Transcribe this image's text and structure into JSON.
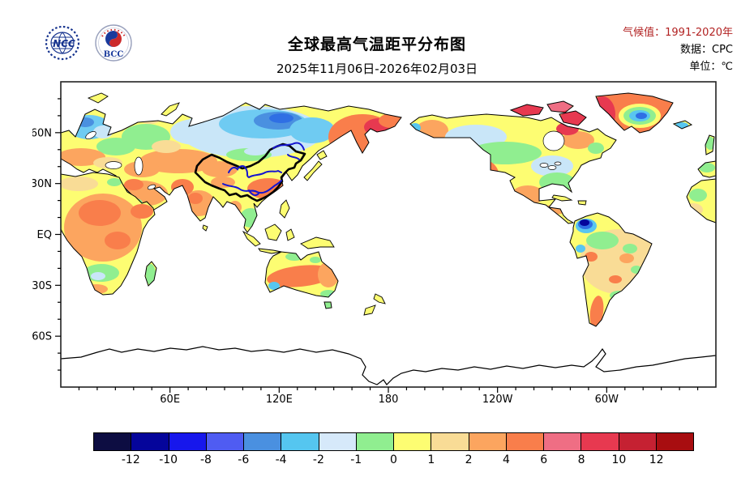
{
  "header": {
    "logo_ncc_text": "NCC",
    "logo_bcc_text": "BCC",
    "title": "全球最高气温距平分布图",
    "subtitle": "2025年11月06日-2026年02月03日",
    "meta": [
      {
        "text": "气候值：1991-2020年",
        "accent": true
      },
      {
        "text": "数据：CPC",
        "accent": false
      },
      {
        "text": "单位：℃",
        "accent": false
      }
    ],
    "accent_color": "#b22222"
  },
  "map": {
    "lon_ticks": [
      {
        "label": "60E",
        "deg": 60
      },
      {
        "label": "120E",
        "deg": 120
      },
      {
        "label": "180",
        "deg": 180
      },
      {
        "label": "120W",
        "deg": 240
      },
      {
        "label": "60W",
        "deg": 300
      }
    ],
    "lat_ticks": [
      {
        "label": "60N",
        "deg": 30
      },
      {
        "label": "30N",
        "deg": 60
      },
      {
        "label": "EQ",
        "deg": 90
      },
      {
        "label": "30S",
        "deg": 120
      },
      {
        "label": "60S",
        "deg": 150
      }
    ],
    "anomaly_regions": [
      [
        "eurasia",
        "scandinavia-cold",
        35,
        56,
        26,
        15,
        "#6fcbf2",
        0
      ],
      [
        "eurasia",
        "scandinavia-core",
        30,
        50,
        11,
        6,
        "#4a90e0",
        0
      ],
      [
        "eurasia",
        "finland-pale",
        52,
        62,
        12,
        8,
        "#c9e6f8",
        0
      ],
      [
        "eurasia",
        "east-europe-mild",
        68,
        80,
        24,
        11,
        "#90ee90",
        0
      ],
      [
        "eurasia",
        "central-europe-warm",
        25,
        93,
        30,
        11,
        "#fca55f",
        0
      ],
      [
        "eurasia",
        "balkans-tan",
        58,
        100,
        18,
        7,
        "#f9dc96",
        0
      ],
      [
        "eurasia",
        "west-russia-mild",
        105,
        68,
        30,
        16,
        "#90ee90",
        0
      ],
      [
        "eurasia",
        "pechora-tan",
        110,
        45,
        14,
        7,
        "#f9dc96",
        0
      ],
      [
        "eurasia",
        "west-siberia-pale",
        165,
        62,
        30,
        16,
        "#c9e6f8",
        0
      ],
      [
        "eurasia",
        "central-siberia-pale",
        235,
        62,
        88,
        32,
        "#c9e6f8",
        0
      ],
      [
        "eurasia",
        "central-siberia-cold",
        250,
        52,
        55,
        18,
        "#6fcbf2",
        0
      ],
      [
        "eurasia",
        "central-siberia-core",
        268,
        48,
        30,
        11,
        "#4a90e0",
        0
      ],
      [
        "eurasia",
        "central-siberia-deep",
        272,
        45,
        15,
        6,
        "#2f6fe4",
        0
      ],
      [
        "eurasia",
        "yakutia-cold",
        310,
        60,
        28,
        16,
        "#6fcbf2",
        0
      ],
      [
        "eurasia",
        "fareast-warm",
        372,
        68,
        42,
        28,
        "#f97e4b",
        0
      ],
      [
        "eurasia",
        "fareast-core",
        392,
        56,
        18,
        11,
        "#e73950",
        0
      ],
      [
        "eurasia",
        "chukotka-warm",
        408,
        48,
        16,
        9,
        "#f97e4b",
        0
      ],
      [
        "eurasia",
        "kazakhstan-warm",
        145,
        98,
        48,
        15,
        "#fca55f",
        0
      ],
      [
        "eurasia",
        "ural-tan",
        130,
        80,
        18,
        8,
        "#f9dc96",
        0
      ],
      [
        "eurasia",
        "caspian-warm",
        100,
        108,
        22,
        10,
        "#fca55f",
        0
      ],
      [
        "eurasia",
        "middle-east-warm",
        100,
        138,
        32,
        16,
        "#fca55f",
        0
      ],
      [
        "eurasia",
        "middle-east-core",
        90,
        127,
        12,
        7,
        "#f97e4b",
        0
      ],
      [
        "eurasia",
        "sw-arabia-mild",
        92,
        150,
        9,
        6,
        "#90ee90",
        0
      ],
      [
        "eurasia",
        "india-warm",
        170,
        150,
        20,
        16,
        "#fca55f",
        0
      ],
      [
        "eurasia",
        "india-core",
        166,
        144,
        9,
        7,
        "#f97e4b",
        0
      ],
      [
        "eurasia",
        "pakistan-warm",
        150,
        130,
        14,
        10,
        "#f97e4b",
        0
      ],
      [
        "eurasia",
        "se-china-warm",
        256,
        132,
        26,
        13,
        "#f97e4b",
        0
      ],
      [
        "eurasia",
        "nw-china-tan",
        196,
        108,
        22,
        10,
        "#fca55f",
        0
      ],
      [
        "eurasia",
        "mongolia-mild",
        232,
        90,
        28,
        8,
        "#90ee90",
        0
      ],
      [
        "eurasia",
        "mongolia-pale",
        240,
        86,
        14,
        5,
        "#c9e6f8",
        0
      ],
      [
        "eurasia",
        "tibet-warm",
        200,
        124,
        15,
        7,
        "#fca55f",
        0
      ],
      [
        "eurasia",
        "indochina-mild",
        234,
        168,
        13,
        12,
        "#90ee90",
        0
      ],
      [
        "eurasia",
        "myanmar-warm",
        215,
        155,
        8,
        8,
        "#fca55f",
        0
      ],
      [
        "africa",
        "africa-warm",
        52,
        180,
        48,
        42,
        "#fca55f",
        0
      ],
      [
        "africa",
        "sahel-core",
        48,
        162,
        26,
        16,
        "#f97e4b",
        0
      ],
      [
        "africa",
        "congo-core",
        70,
        196,
        16,
        11,
        "#f97e4b",
        0
      ],
      [
        "africa",
        "horn-warm",
        100,
        160,
        14,
        9,
        "#f97e4b",
        0
      ],
      [
        "africa",
        "egypt-mild",
        66,
        124,
        9,
        5,
        "#90ee90",
        0
      ],
      [
        "africa",
        "maghreb-tan",
        22,
        126,
        24,
        9,
        "#f9dc96",
        0
      ],
      [
        "africa",
        "south-africa-mild",
        50,
        236,
        22,
        11,
        "#90ee90",
        0
      ],
      [
        "africa",
        "south-africa-pale",
        46,
        240,
        9,
        5,
        "#c9e6f8",
        0
      ],
      [
        "africa",
        "cape-warm",
        44,
        256,
        14,
        6,
        "#fca55f",
        0
      ],
      [
        "africa",
        "madagascar-mild",
        111,
        238,
        6,
        13,
        "#90ee90",
        0
      ],
      [
        "australia",
        "australia-warm",
        296,
        240,
        42,
        13,
        "#f97e4b",
        -6
      ],
      [
        "australia",
        "east-australia-warm",
        330,
        238,
        13,
        16,
        "#fca55f",
        0
      ],
      [
        "australia",
        "north-australia-mild",
        288,
        216,
        11,
        5,
        "#90ee90",
        0
      ],
      [
        "australia",
        "cape-york-mild",
        314,
        220,
        7,
        4,
        "#90ee90",
        0
      ],
      [
        "australia",
        "sw-australia-cool",
        263,
        252,
        7,
        5,
        "#58c6f0",
        0
      ],
      [
        "australia",
        "se-australia-mild",
        330,
        262,
        10,
        5,
        "#90ee90",
        0
      ],
      [
        "australia",
        "se-australia-cool",
        335,
        264,
        4,
        3,
        "#58c6f0",
        0
      ],
      [
        "australia",
        "tasmania-mild",
        329,
        276,
        5,
        4,
        "#90ee90",
        0
      ],
      [
        "namerica",
        "alaska-warm",
        458,
        60,
        20,
        13,
        "#fca55f",
        0
      ],
      [
        "namerica",
        "west-alaska-cool",
        437,
        57,
        7,
        6,
        "#58c6f0",
        0
      ],
      [
        "namerica",
        "nw-canada-pale",
        512,
        68,
        38,
        15,
        "#c9e6f8",
        0
      ],
      [
        "namerica",
        "central-canada-mild",
        548,
        88,
        45,
        14,
        "#90ee90",
        0
      ],
      [
        "namerica",
        "west-us-warm",
        506,
        114,
        34,
        22,
        "#f97e4b",
        0
      ],
      [
        "namerica",
        "west-us-core",
        502,
        110,
        14,
        9,
        "#e73950",
        0
      ],
      [
        "namerica",
        "great-lakes-pale",
        606,
        104,
        26,
        13,
        "#c9e6f8",
        0
      ],
      [
        "namerica",
        "east-us-mild",
        612,
        124,
        22,
        12,
        "#90ee90",
        0
      ],
      [
        "namerica",
        "mexico-warm",
        576,
        140,
        20,
        12,
        "#fca55f",
        0
      ],
      [
        "namerica",
        "quebec-warm",
        638,
        72,
        20,
        11,
        "#fca55f",
        0
      ],
      [
        "namerica",
        "labrador-mild",
        660,
        82,
        10,
        7,
        "#90ee90",
        0
      ],
      [
        "namerica",
        "central-america-warm",
        608,
        158,
        16,
        6,
        "#fca55f",
        0
      ],
      [
        "namerica",
        "hudson-east-hot",
        625,
        58,
        14,
        8,
        "#e73950",
        0
      ],
      [
        "arctic",
        "arctic-islands-hot",
        585,
        34,
        40,
        10,
        "#e73950",
        0
      ],
      [
        "arctic",
        "baffin-hot",
        632,
        46,
        17,
        10,
        "#e73950",
        0
      ],
      [
        "arctic",
        "arctic-pink",
        610,
        30,
        20,
        7,
        "#ef6e84",
        0
      ],
      [
        "greenland",
        "greenland-warm",
        706,
        38,
        58,
        30,
        "#f97e4b",
        0
      ],
      [
        "greenland",
        "west-greenland-hot",
        668,
        40,
        16,
        22,
        "#e73950",
        0
      ],
      [
        "greenland",
        "greenland-yellow-ring",
        714,
        42,
        26,
        15,
        "#fdfd72",
        0
      ],
      [
        "greenland",
        "greenland-green-ring",
        714,
        42,
        20,
        11,
        "#90ee90",
        0
      ],
      [
        "greenland",
        "greenland-cyan",
        714,
        42,
        13,
        7,
        "#58c6f0",
        0
      ],
      [
        "greenland",
        "greenland-blue-core",
        716,
        42,
        7,
        4,
        "#2f6fe4",
        0
      ],
      [
        "samerica",
        "south-america-tan",
        688,
        222,
        48,
        40,
        "#f9dc96",
        0
      ],
      [
        "samerica",
        "amazon-mild",
        668,
        196,
        20,
        11,
        "#90ee90",
        0
      ],
      [
        "samerica",
        "colombia-cyan",
        648,
        178,
        13,
        9,
        "#58c6f0",
        0
      ],
      [
        "samerica",
        "colombia-blue",
        647,
        176,
        9,
        6,
        "#2f6fe4",
        0
      ],
      [
        "samerica",
        "colombia-navy",
        646,
        174,
        6,
        4,
        "#05059b",
        0
      ],
      [
        "samerica",
        "peru-cool",
        641,
        206,
        6,
        5,
        "#58c6f0",
        0
      ],
      [
        "samerica",
        "andes-warm",
        654,
        216,
        8,
        6,
        "#f97e4b",
        0
      ],
      [
        "samerica",
        "brazil-warm-1",
        698,
        218,
        9,
        6,
        "#fca55f",
        0
      ],
      [
        "samerica",
        "brazil-warm-2",
        684,
        244,
        8,
        5,
        "#f97e4b",
        0
      ],
      [
        "samerica",
        "brazil-mild-1",
        702,
        206,
        9,
        6,
        "#90ee90",
        0
      ],
      [
        "samerica",
        "brazil-mild-2",
        710,
        232,
        7,
        5,
        "#90ee90",
        0
      ],
      [
        "samerica",
        "south-brazil-mild",
        688,
        264,
        11,
        6,
        "#90ee90",
        0
      ],
      [
        "samerica",
        "patagonia-warm",
        661,
        284,
        8,
        20,
        "#f97e4b",
        8
      ],
      [
        "fragments",
        "iberia-mild",
        797,
        106,
        10,
        6,
        "#90ee90",
        0
      ],
      [
        "fragments",
        "uk-mild",
        801,
        76,
        6,
        8,
        "#90ee90",
        0
      ],
      [
        "fragments",
        "iceland-cool",
        766,
        54,
        8,
        4,
        "#58c6f0",
        0
      ],
      [
        "fragments",
        "nw-africa-mild",
        786,
        140,
        11,
        8,
        "#90ee90",
        0
      ],
      [
        "fragments",
        "nw-africa-tan",
        780,
        158,
        12,
        8,
        "#f9dc96",
        0
      ],
      [
        "islands",
        "japan-mild",
        312,
        110,
        5,
        4,
        "#90ee90",
        0
      ],
      [
        "islands",
        "borneo-mild",
        261,
        186,
        7,
        6,
        "#90ee90",
        0
      ],
      [
        "islands",
        "new-guinea-mild",
        316,
        198,
        13,
        5,
        "#90ee90",
        0
      ],
      [
        "islands",
        "new-zealand-tan",
        388,
        268,
        6,
        4,
        "#f9dc96",
        0
      ],
      [
        "islands",
        "svalbard-warm",
        45,
        20,
        10,
        5,
        "#fca55f",
        0
      ]
    ]
  },
  "colorbar": {
    "levels": [
      "-12",
      "-10",
      "-8",
      "-6",
      "-4",
      "-2",
      "-1",
      "0",
      "1",
      "2",
      "4",
      "6",
      "8",
      "10",
      "12"
    ],
    "colors": [
      "#0d0d42",
      "#05059b",
      "#1717ec",
      "#4f5cf2",
      "#4a90e0",
      "#55c6f0",
      "#d6e9fa",
      "#90ee90",
      "#fdfd72",
      "#f9dc96",
      "#fca55f",
      "#f97e4b",
      "#ef6e84",
      "#e73950",
      "#c52132",
      "#a80d10"
    ]
  },
  "chart_data": {
    "type": "heatmap",
    "title": "全球最高气温距平分布图",
    "subtitle": "2025年11月06日-2026年02月03日",
    "climatology": "1991-2020年",
    "data_source": "CPC",
    "units": "℃",
    "projection": "equirectangular, 0E at left edge, centered near 180",
    "lon_axis_labels": [
      "60E",
      "120E",
      "180",
      "120W",
      "60W"
    ],
    "lat_axis_labels": [
      "60N",
      "30N",
      "EQ",
      "30S",
      "60S"
    ],
    "colorbar_levels": [
      -12,
      -10,
      -8,
      -6,
      -4,
      -2,
      -1,
      0,
      1,
      2,
      4,
      6,
      8,
      10,
      12
    ],
    "colorbar_colors": [
      "#0d0d42",
      "#05059b",
      "#1717ec",
      "#4f5cf2",
      "#4a90e0",
      "#55c6f0",
      "#d6e9fa",
      "#90ee90",
      "#fdfd72",
      "#f9dc96",
      "#fca55f",
      "#f97e4b",
      "#ef6e84",
      "#e73950",
      "#c52132",
      "#a80d10"
    ],
    "notable_anomalies": [
      {
        "region": "Central Siberia",
        "anomaly_c": "-4 to -8"
      },
      {
        "region": "Scandinavia",
        "anomaly_c": "-2 to -4"
      },
      {
        "region": "Russian Far East / Chukotka",
        "anomaly_c": "+2 to +6"
      },
      {
        "region": "Canadian Arctic islands",
        "anomaly_c": "+6 to +8"
      },
      {
        "region": "Greenland coast",
        "anomaly_c": "+2 to +6"
      },
      {
        "region": "Greenland interior",
        "anomaly_c": "-2 to -6"
      },
      {
        "region": "Western United States",
        "anomaly_c": "+2 to +4"
      },
      {
        "region": "Great Lakes / central Canada",
        "anomaly_c": "-1 to +0"
      },
      {
        "region": "Central and East Africa",
        "anomaly_c": "+1 to +4"
      },
      {
        "region": "Middle East",
        "anomaly_c": "+1 to +4"
      },
      {
        "region": "Southeast China",
        "anomaly_c": "+2 to +4"
      },
      {
        "region": "Central Australia",
        "anomaly_c": "+2 to +4"
      },
      {
        "region": "Northwest South America (Colombia)",
        "anomaly_c": "-8 to -12"
      },
      {
        "region": "Patagonia",
        "anomaly_c": "+2 to +4"
      },
      {
        "region": "Antarctica",
        "anomaly_c": "no data (outline only)"
      }
    ]
  }
}
